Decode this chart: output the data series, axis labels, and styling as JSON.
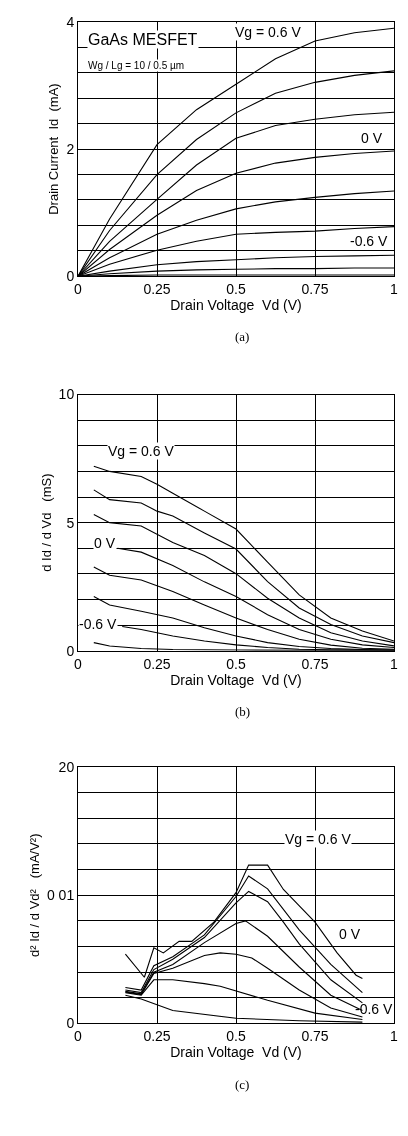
{
  "chart_data": [
    {
      "type": "line",
      "xlabel": "Drain Voltage  Vd (V)",
      "ylabel": "Drain Current  Id  (mA)",
      "xlim": [
        0,
        1
      ],
      "ylim": [
        0,
        4
      ],
      "xticks": [
        0,
        0.25,
        0.5,
        0.75,
        1
      ],
      "yticks": [
        0,
        {
          "value": 0.4,
          "label": null
        },
        {
          "value": 0.8,
          "label": null
        },
        {
          "value": 1.2,
          "label": null
        },
        {
          "value": 1.6,
          "label": null
        },
        2,
        {
          "value": 2.4,
          "label": null
        },
        {
          "value": 2.8,
          "label": null
        },
        {
          "value": 3.2,
          "label": null
        },
        {
          "value": 3.6,
          "label": null
        },
        4
      ],
      "grid": true,
      "line_style": "solid",
      "x": [
        0,
        0.1,
        0.25,
        0.375,
        0.5,
        0.625,
        0.75,
        0.875,
        1
      ],
      "series": [
        {
          "color": "#000000",
          "values": [
            0,
            0.9,
            2.07,
            2.62,
            3.02,
            3.42,
            3.7,
            3.83,
            3.9
          ]
        },
        {
          "color": "#000000",
          "values": [
            0,
            0.72,
            1.6,
            2.15,
            2.57,
            2.88,
            3.05,
            3.16,
            3.23
          ]
        },
        {
          "color": "#000000",
          "values": [
            0,
            0.55,
            1.21,
            1.75,
            2.17,
            2.37,
            2.47,
            2.54,
            2.58
          ]
        },
        {
          "color": "#000000",
          "values": [
            0,
            0.42,
            0.96,
            1.35,
            1.62,
            1.78,
            1.87,
            1.93,
            1.97
          ]
        },
        {
          "color": "#000000",
          "values": [
            0,
            0.29,
            0.66,
            0.88,
            1.06,
            1.17,
            1.24,
            1.3,
            1.34
          ]
        },
        {
          "color": "#000000",
          "values": [
            0,
            0.19,
            0.41,
            0.55,
            0.66,
            0.69,
            0.71,
            0.75,
            0.78
          ]
        },
        {
          "color": "#000000",
          "values": [
            0,
            0.08,
            0.18,
            0.23,
            0.26,
            0.29,
            0.31,
            0.32,
            0.33
          ]
        },
        {
          "color": "#000000",
          "values": [
            0,
            0.04,
            0.08,
            0.1,
            0.11,
            0.12,
            0.12,
            0.13,
            0.13
          ]
        },
        {
          "color": "#000000",
          "values": [
            0,
            0.01,
            0.02,
            0.02,
            0.02,
            0.02,
            0.02,
            0.02,
            0.02
          ]
        }
      ],
      "annotations": [
        "Vg = 0.6 V",
        "0 V",
        "-0.6 V",
        "GaAs MESFET",
        "Wg / Lg = 10 / 0.5 µm",
        "(a)"
      ]
    },
    {
      "type": "line",
      "xlabel": "Drain Voltage  Vd (V)",
      "ylabel": "d Id / d Vd   (mS)",
      "xlim": [
        0,
        1
      ],
      "ylim": [
        0,
        10
      ],
      "xticks": [
        0,
        0.25,
        0.5,
        0.75,
        1
      ],
      "yticks": [
        0,
        {
          "value": 1,
          "label": null
        },
        {
          "value": 2,
          "label": null
        },
        {
          "value": 3,
          "label": null
        },
        {
          "value": 4,
          "label": null
        },
        5,
        {
          "value": 6,
          "label": null
        },
        {
          "value": 7,
          "label": null
        },
        {
          "value": 8,
          "label": null
        },
        {
          "value": 9,
          "label": null
        },
        10
      ],
      "grid": true,
      "line_style": "solid",
      "series": [
        {
          "color": "#000000",
          "x": [
            0.05,
            0.1,
            0.2,
            0.25,
            0.3,
            0.4,
            0.5,
            0.6,
            0.7,
            0.8,
            0.9,
            1
          ],
          "values": [
            7.2,
            7.0,
            6.8,
            6.5,
            6.15,
            5.45,
            4.75,
            3.46,
            2.18,
            1.28,
            0.77,
            0.38
          ]
        },
        {
          "color": "#000000",
          "x": [
            0.05,
            0.1,
            0.2,
            0.25,
            0.3,
            0.4,
            0.5,
            0.6,
            0.7,
            0.8,
            0.9,
            1
          ],
          "values": [
            6.28,
            5.9,
            5.77,
            5.45,
            5.26,
            4.6,
            3.97,
            2.7,
            1.67,
            1.03,
            0.58,
            0.32
          ]
        },
        {
          "color": "#000000",
          "x": [
            0.05,
            0.1,
            0.2,
            0.3,
            0.4,
            0.5,
            0.6,
            0.7,
            0.8,
            0.9,
            1
          ],
          "values": [
            5.32,
            5.0,
            4.87,
            4.23,
            3.72,
            3.01,
            2.05,
            1.28,
            0.7,
            0.38,
            0.19
          ]
        },
        {
          "color": "#000000",
          "x": [
            0.125,
            0.2,
            0.3,
            0.4,
            0.5,
            0.6,
            0.7,
            0.8,
            0.9,
            1
          ],
          "values": [
            4.0,
            3.85,
            3.33,
            2.69,
            2.12,
            1.41,
            0.83,
            0.45,
            0.23,
            0.13
          ]
        },
        {
          "color": "#000000",
          "x": [
            0.05,
            0.1,
            0.2,
            0.3,
            0.4,
            0.5,
            0.6,
            0.7,
            0.8,
            0.9,
            1
          ],
          "values": [
            3.27,
            2.95,
            2.76,
            2.31,
            1.79,
            1.28,
            0.83,
            0.45,
            0.22,
            0.1,
            0.06
          ]
        },
        {
          "color": "#000000",
          "x": [
            0.05,
            0.1,
            0.2,
            0.3,
            0.4,
            0.5,
            0.6,
            0.7,
            0.8,
            0.9,
            1
          ],
          "values": [
            2.12,
            1.79,
            1.54,
            1.28,
            0.9,
            0.58,
            0.32,
            0.17,
            0.09,
            0.05,
            0.03
          ]
        },
        {
          "color": "#000000",
          "x": [
            0.14,
            0.2,
            0.3,
            0.4,
            0.5,
            0.6,
            0.7,
            0.8,
            1
          ],
          "values": [
            0.95,
            0.83,
            0.58,
            0.38,
            0.23,
            0.13,
            0.06,
            0.04,
            0.03
          ]
        },
        {
          "color": "#000000",
          "x": [
            0.05,
            0.1,
            0.2,
            0.3,
            0.5,
            1
          ],
          "values": [
            0.32,
            0.19,
            0.09,
            0.05,
            0.03,
            0.01
          ]
        }
      ],
      "annotations": [
        "Vg = 0.6 V",
        "0 V",
        "-0.6 V",
        "(b)"
      ]
    },
    {
      "type": "line",
      "xlabel": "Drain Voltage  Vd (V)",
      "ylabel": "d² Id / d Vd²   (mA/V²)",
      "xlim": [
        0,
        1
      ],
      "ylim": [
        0,
        20
      ],
      "xticks": [
        0,
        0.25,
        0.5,
        0.75,
        1
      ],
      "yticks": [
        0,
        {
          "value": 2,
          "label": null
        },
        {
          "value": 4,
          "label": null
        },
        {
          "value": 6,
          "label": null
        },
        {
          "value": 8,
          "label": null
        },
        {
          "value": 10,
          "label": "0 01"
        },
        {
          "value": 12,
          "label": null
        },
        {
          "value": 14,
          "label": null
        },
        {
          "value": 16,
          "label": null
        },
        {
          "value": 18,
          "label": null
        },
        20
      ],
      "grid": true,
      "line_style": "solid",
      "series": [
        {
          "color": "#000000",
          "x": [
            0.15,
            0.21,
            0.24,
            0.27,
            0.32,
            0.36,
            0.43,
            0.5,
            0.54,
            0.6,
            0.65,
            0.75,
            0.82,
            0.88,
            0.9
          ],
          "values": [
            5.4,
            3.6,
            5.9,
            5.5,
            6.4,
            6.4,
            7.9,
            10.2,
            12.35,
            12.35,
            10.45,
            7.9,
            5.5,
            3.76,
            3.5
          ]
        },
        {
          "color": "#000000",
          "x": [
            0.15,
            0.2,
            0.24,
            0.3,
            0.4,
            0.5,
            0.54,
            0.6,
            0.7,
            0.8,
            0.9
          ],
          "values": [
            2.8,
            2.6,
            4.5,
            5.2,
            6.9,
            9.9,
            11.5,
            10.5,
            7.3,
            4.6,
            2.4
          ]
        },
        {
          "color": "#000000",
          "x": [
            0.15,
            0.2,
            0.24,
            0.3,
            0.4,
            0.5,
            0.54,
            0.6,
            0.65,
            0.7,
            0.8,
            0.9
          ],
          "values": [
            2.6,
            2.4,
            4.2,
            5.0,
            6.7,
            9.4,
            10.3,
            9.5,
            7.9,
            6.2,
            3.4,
            1.6
          ]
        },
        {
          "color": "#000000",
          "x": [
            0.15,
            0.2,
            0.24,
            0.3,
            0.4,
            0.5,
            0.53,
            0.6,
            0.7,
            0.8,
            0.9
          ],
          "values": [
            2.5,
            2.3,
            4.0,
            4.6,
            6.3,
            7.8,
            8.0,
            6.8,
            4.4,
            2.2,
            1.0
          ]
        },
        {
          "color": "#000000",
          "x": [
            0.15,
            0.2,
            0.24,
            0.3,
            0.4,
            0.45,
            0.5,
            0.55,
            0.6,
            0.7,
            0.8,
            0.9
          ],
          "values": [
            2.45,
            2.25,
            3.9,
            4.3,
            5.3,
            5.5,
            5.4,
            5.1,
            4.3,
            2.6,
            1.2,
            0.5
          ]
        },
        {
          "color": "#000000",
          "x": [
            0.15,
            0.2,
            0.24,
            0.3,
            0.4,
            0.45,
            0.6,
            0.75,
            0.9
          ],
          "values": [
            2.4,
            2.2,
            3.4,
            3.4,
            3.1,
            2.9,
            1.8,
            0.8,
            0.3
          ]
        },
        {
          "color": "#000000",
          "x": [
            0.15,
            0.2,
            0.3,
            0.5,
            0.7,
            0.9
          ],
          "values": [
            2.2,
            1.9,
            1.0,
            0.4,
            0.2,
            0.1
          ]
        }
      ],
      "annotations": [
        "Vg = 0.6 V",
        "0 V",
        "-0.6 V",
        "(c)"
      ]
    }
  ]
}
